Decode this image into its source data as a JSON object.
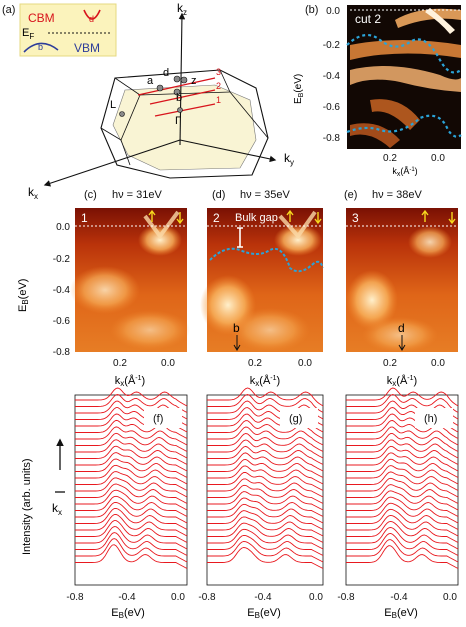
{
  "panel_a": {
    "label": "(a)",
    "legend": {
      "cbm": "CBM",
      "d": "d",
      "ef": "E",
      "ef_sub": "F",
      "b": "b",
      "vbm": "VBM"
    },
    "axes": {
      "kz": "k",
      "kz_sub": "z",
      "kx": "k",
      "kx_sub": "x",
      "ky": "k",
      "ky_sub": "y"
    },
    "points": {
      "L": "L",
      "Gamma": "Γ",
      "a": "a",
      "b": "b",
      "d": "d",
      "z": "z"
    },
    "cuts": [
      "3",
      "2",
      "1"
    ]
  },
  "panel_b": {
    "label": "(b)",
    "cut_label": "cut 2",
    "ylabel": "E",
    "ylabel_sub": "B",
    "ylabel_unit": "(eV)",
    "yticks": [
      "0.0",
      "-0.2",
      "-0.4",
      "-0.6",
      "-0.8"
    ],
    "xticks": [
      "0.2",
      "0.0"
    ],
    "xlabel": "k",
    "xlabel_sub": "x",
    "xlabel_unit": "(Å",
    "xlabel_exp": "-1",
    "xlabel_close": ")"
  },
  "row_cde": {
    "panels": [
      {
        "label": "(c)",
        "title": "hν = 31eV",
        "num": "1"
      },
      {
        "label": "(d)",
        "title": "hν = 35eV",
        "num": "2",
        "note": "Bulk gap",
        "marker": "b"
      },
      {
        "label": "(e)",
        "title": "hν = 38eV",
        "num": "3",
        "marker": "d"
      }
    ],
    "ylabel": "E",
    "ylabel_sub": "B",
    "ylabel_unit": "(eV)",
    "yticks": [
      "0.0",
      "-0.2",
      "-0.4",
      "-0.6",
      "-0.8"
    ],
    "xticks": [
      "0.2",
      "0.0"
    ],
    "xlabel": "k",
    "xlabel_sub": "x",
    "xlabel_unit": "(Å",
    "xlabel_exp": "-1",
    "xlabel_close": ")"
  },
  "row_fgh": {
    "panels": [
      {
        "label": "(f)"
      },
      {
        "label": "(g)"
      },
      {
        "label": "(h)"
      }
    ],
    "ylabel": "Intensity (arb. units)",
    "arrow_label": "k",
    "arrow_label_sub": "x",
    "xticks": [
      "-0.8",
      "-0.4",
      "0.0"
    ],
    "xlabel": "E",
    "xlabel_sub": "B",
    "xlabel_unit": "(eV)"
  },
  "colors": {
    "curve": "#e8191f",
    "dashed_blue": "#2aa3d8",
    "marker_yellow": "#f6d81e"
  }
}
